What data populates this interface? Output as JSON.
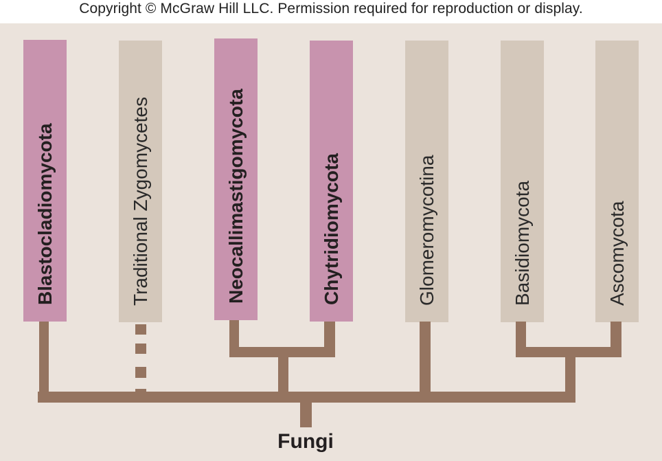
{
  "copyright": "Copyright © McGraw Hill LLC. Permission required for reproduction or display.",
  "colors": {
    "background": "#ebe3dc",
    "highlight_box": "#c893ae",
    "plain_box": "#d4c8bb",
    "branch": "#957460"
  },
  "taxa": [
    {
      "label": "Blastocladiomycota",
      "highlighted": true
    },
    {
      "label": "Traditional Zygomycetes",
      "highlighted": false
    },
    {
      "label": "Neocallimastigomycota",
      "highlighted": true
    },
    {
      "label": "Chytridiomycota",
      "highlighted": true
    },
    {
      "label": "Glomeromycotina",
      "highlighted": false
    },
    {
      "label": "Basidiomycota",
      "highlighted": false
    },
    {
      "label": "Ascomycota",
      "highlighted": false
    }
  ],
  "root_label": "Fungi"
}
